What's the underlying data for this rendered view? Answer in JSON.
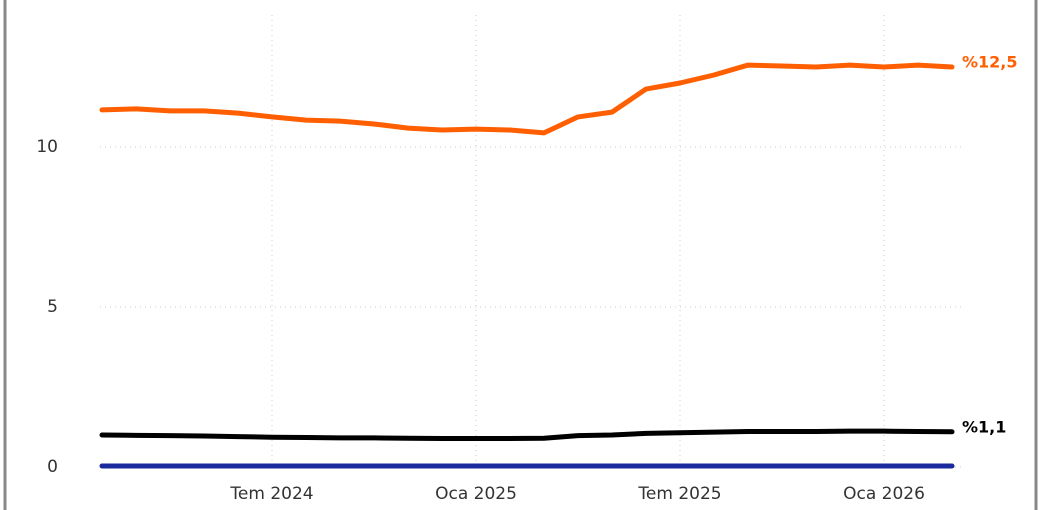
{
  "chart_data": {
    "type": "line",
    "categories": [
      null,
      null,
      null,
      null,
      null,
      "Tem 2024",
      null,
      null,
      null,
      null,
      null,
      "Oca 2025",
      null,
      null,
      null,
      null,
      null,
      "Tem 2025",
      null,
      null,
      null,
      null,
      null,
      "Oca 2026",
      null,
      null
    ],
    "series": [
      {
        "color": "#ff5f00",
        "values": [
          11.16,
          11.19,
          11.13,
          11.13,
          11.06,
          10.94,
          10.84,
          10.81,
          10.72,
          10.59,
          10.53,
          10.56,
          10.53,
          10.44,
          10.94,
          11.09,
          11.81,
          12.0,
          12.25,
          12.56,
          12.53,
          12.5,
          12.56,
          12.5,
          12.56,
          12.5
        ],
        "end_label": "%12,5"
      },
      {
        "color": "#000000",
        "values": [
          1.0,
          0.99,
          0.98,
          0.97,
          0.95,
          0.93,
          0.92,
          0.91,
          0.91,
          0.9,
          0.89,
          0.89,
          0.89,
          0.9,
          0.98,
          1.0,
          1.05,
          1.07,
          1.09,
          1.11,
          1.11,
          1.11,
          1.12,
          1.12,
          1.11,
          1.1
        ],
        "end_label": "%1,1"
      },
      {
        "color": "#1a2a9c",
        "values": [
          0.03,
          0.03,
          0.03,
          0.03,
          0.03,
          0.03,
          0.03,
          0.03,
          0.03,
          0.03,
          0.03,
          0.03,
          0.03,
          0.03,
          0.03,
          0.03,
          0.03,
          0.03,
          0.03,
          0.03,
          0.03,
          0.03,
          0.03,
          0.03,
          0.03,
          0.03
        ]
      }
    ],
    "ylim": [
      0,
      14.5
    ],
    "yticks": [
      0,
      5,
      10
    ],
    "grid": true
  }
}
